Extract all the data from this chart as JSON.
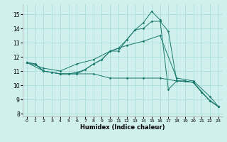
{
  "xlabel": "Humidex (Indice chaleur)",
  "xlim": [
    -0.5,
    23.5
  ],
  "ylim": [
    7.8,
    15.7
  ],
  "yticks": [
    8,
    9,
    10,
    11,
    12,
    13,
    14,
    15
  ],
  "xticks": [
    0,
    1,
    2,
    3,
    4,
    5,
    6,
    7,
    8,
    9,
    10,
    11,
    12,
    13,
    14,
    15,
    16,
    17,
    18,
    19,
    20,
    21,
    22,
    23
  ],
  "bg_color": "#cff0ec",
  "grid_color": "#aaddd8",
  "line_color": "#1a7a6e",
  "series": [
    {
      "x": [
        0,
        2,
        4,
        6,
        8,
        10,
        12,
        14,
        16,
        18,
        20,
        22,
        23
      ],
      "y": [
        11.6,
        11.0,
        10.8,
        10.8,
        10.8,
        10.5,
        10.5,
        10.5,
        10.5,
        10.3,
        10.2,
        8.9,
        8.5
      ]
    },
    {
      "x": [
        0,
        2,
        4,
        6,
        8,
        10,
        12,
        14,
        16,
        18,
        20,
        22,
        23
      ],
      "y": [
        11.6,
        11.2,
        11.0,
        11.5,
        11.8,
        12.4,
        12.8,
        13.1,
        13.5,
        10.5,
        10.3,
        9.2,
        8.5
      ]
    },
    {
      "x": [
        0,
        1,
        2,
        3,
        4,
        5,
        6,
        7,
        8,
        9,
        10,
        11,
        12,
        13,
        14,
        15,
        16,
        17,
        18,
        19,
        20,
        21,
        22,
        23
      ],
      "y": [
        11.6,
        11.5,
        11.0,
        10.9,
        10.8,
        10.8,
        10.9,
        11.1,
        11.5,
        11.8,
        12.4,
        12.4,
        13.2,
        13.9,
        14.0,
        14.5,
        14.5,
        13.8,
        10.3,
        10.3,
        10.2,
        9.5,
        8.9,
        8.5
      ]
    },
    {
      "x": [
        0,
        1,
        2,
        3,
        4,
        5,
        6,
        7,
        8,
        9,
        10,
        11,
        12,
        13,
        14,
        15,
        16,
        17,
        18,
        19,
        20,
        21,
        22,
        23
      ],
      "y": [
        11.6,
        11.5,
        11.0,
        10.9,
        10.8,
        10.8,
        10.8,
        11.1,
        11.5,
        11.8,
        12.4,
        12.6,
        13.2,
        13.9,
        14.4,
        15.2,
        14.6,
        9.7,
        10.3,
        10.3,
        10.2,
        9.5,
        8.9,
        8.5
      ]
    }
  ]
}
